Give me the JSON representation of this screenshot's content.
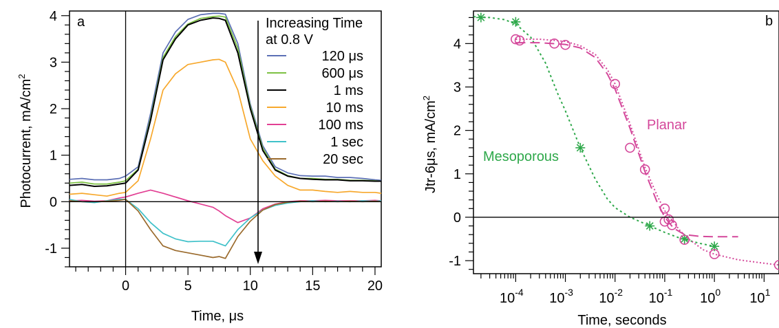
{
  "chart_data": [
    {
      "type": "line",
      "panel_label": "a",
      "xlabel": "Time, μs",
      "ylabel_main": "Photocurrent, mA/cm",
      "ylabel_sup": "2",
      "xlim": [
        -4.5,
        20.5
      ],
      "ylim": [
        -1.4,
        4.1
      ],
      "xticks": [
        0,
        5,
        10,
        15,
        20
      ],
      "yticks": [
        -1,
        0,
        1,
        2,
        3,
        4
      ],
      "grid": false,
      "legend_position": "top-right",
      "legend_title": [
        "Increasing Time",
        "at 0.8 V"
      ],
      "x": [
        -4.5,
        -3.5,
        -2.5,
        -1.5,
        -0.5,
        0,
        1,
        2,
        3,
        4,
        5,
        6,
        7,
        7.5,
        8,
        9,
        10,
        11,
        12,
        13,
        14,
        15,
        16,
        17,
        18,
        19,
        20,
        20.5
      ],
      "series": [
        {
          "name": "120 μs",
          "color": "#5b6fb5",
          "values": [
            0.48,
            0.5,
            0.47,
            0.47,
            0.5,
            0.55,
            0.75,
            1.9,
            3.2,
            3.65,
            3.92,
            4.02,
            4.05,
            4.05,
            4.03,
            3.4,
            2.1,
            1.2,
            0.75,
            0.62,
            0.56,
            0.55,
            0.55,
            0.52,
            0.52,
            0.5,
            0.47,
            0.46
          ]
        },
        {
          "name": "600 μs",
          "color": "#7cc142",
          "values": [
            0.4,
            0.42,
            0.38,
            0.38,
            0.42,
            0.45,
            0.7,
            1.8,
            3.1,
            3.55,
            3.82,
            3.94,
            3.98,
            3.99,
            3.97,
            3.3,
            2.05,
            1.15,
            0.7,
            0.56,
            0.5,
            0.5,
            0.48,
            0.48,
            0.46,
            0.46,
            0.45,
            0.44
          ]
        },
        {
          "name": "1 ms",
          "color": "#000000",
          "values": [
            0.35,
            0.37,
            0.33,
            0.34,
            0.38,
            0.4,
            0.68,
            1.75,
            3.05,
            3.5,
            3.8,
            3.9,
            3.95,
            3.94,
            3.9,
            3.2,
            2.0,
            1.1,
            0.68,
            0.55,
            0.5,
            0.48,
            0.47,
            0.47,
            0.45,
            0.45,
            0.44,
            0.44
          ]
        },
        {
          "name": "10 ms",
          "color": "#f7a82c",
          "values": [
            0.16,
            0.18,
            0.15,
            0.12,
            0.18,
            0.2,
            0.45,
            1.35,
            2.4,
            2.75,
            2.95,
            3.0,
            3.05,
            3.06,
            3.0,
            2.4,
            1.35,
            0.88,
            0.55,
            0.35,
            0.25,
            0.25,
            0.22,
            0.2,
            0.22,
            0.2,
            0.2,
            0.18
          ]
        },
        {
          "name": "100 ms",
          "color": "#e23f93",
          "values": [
            0.02,
            0.03,
            0.01,
            0.02,
            0.08,
            0.1,
            0.18,
            0.25,
            0.18,
            0.1,
            0.02,
            -0.05,
            -0.12,
            -0.2,
            -0.3,
            -0.45,
            -0.35,
            -0.15,
            -0.05,
            0.0,
            0.02,
            0.02,
            0.03,
            0.02,
            0.02,
            0.02,
            0.03,
            0.02
          ]
        },
        {
          "name": "1 sec",
          "color": "#3fc1c9",
          "values": [
            0.05,
            0.0,
            -0.02,
            0.02,
            0.05,
            0.05,
            -0.15,
            -0.45,
            -0.68,
            -0.8,
            -0.86,
            -0.85,
            -0.85,
            -0.9,
            -0.95,
            -0.6,
            -0.35,
            -0.18,
            -0.08,
            -0.03,
            0.0,
            0.02,
            0.0,
            0.01,
            0.0,
            0.02,
            0.01,
            0.02
          ]
        },
        {
          "name": "20 sec",
          "color": "#9a6a2c",
          "values": [
            0.02,
            0.0,
            0.0,
            0.01,
            0.03,
            0.05,
            -0.2,
            -0.6,
            -0.95,
            -1.05,
            -1.1,
            -1.15,
            -1.2,
            -1.18,
            -1.22,
            -0.75,
            -0.42,
            -0.18,
            -0.06,
            -0.01,
            0.01,
            0.0,
            0.01,
            0.0,
            0.01,
            0.0,
            0.01,
            0.0
          ]
        }
      ]
    },
    {
      "type": "scatter",
      "panel_label": "b",
      "xscale": "log",
      "xlabel": "Time, seconds",
      "ylabel_main": "Jtr-6μs,  mA/cm",
      "ylabel_sup": "2",
      "xlim_log10": [
        -4.85,
        1.3
      ],
      "ylim": [
        -1.3,
        4.75
      ],
      "xticks_log10": [
        -4,
        -3,
        -2,
        -1,
        0,
        1
      ],
      "xtick_labels": [
        {
          "base": "10",
          "exp": "-4"
        },
        {
          "base": "10",
          "exp": "-3"
        },
        {
          "base": "10",
          "exp": "-2"
        },
        {
          "base": "10",
          "exp": "-1"
        },
        {
          "base": "10",
          "exp": "0"
        },
        {
          "base": "10",
          "exp": "1"
        }
      ],
      "yticks": [
        -1,
        0,
        1,
        2,
        3,
        4
      ],
      "grid": false,
      "annotations": [
        {
          "text": "Planar",
          "color": "#d4479a"
        },
        {
          "text": "Mesoporous",
          "color": "#2ea84a"
        }
      ],
      "series": [
        {
          "name": "Mesoporous",
          "color": "#2ea84a",
          "marker": "asterisk",
          "points": [
            [
              2e-05,
              4.6
            ],
            [
              0.0001,
              4.5
            ],
            [
              0.002,
              1.6
            ],
            [
              0.05,
              -0.2
            ],
            [
              0.25,
              -0.5
            ],
            [
              1.0,
              -0.67
            ]
          ],
          "fit_curve": [
            [
              1.42e-05,
              4.62
            ],
            [
              3e-05,
              4.6
            ],
            [
              6e-05,
              4.55
            ],
            [
              0.0001,
              4.45
            ],
            [
              0.0002,
              4.15
            ],
            [
              0.0004,
              3.55
            ],
            [
              0.0007,
              2.85
            ],
            [
              0.001,
              2.45
            ],
            [
              0.002,
              1.6
            ],
            [
              0.004,
              0.88
            ],
            [
              0.007,
              0.42
            ],
            [
              0.01,
              0.22
            ],
            [
              0.02,
              0.0
            ],
            [
              0.05,
              -0.2
            ],
            [
              0.1,
              -0.35
            ],
            [
              0.2,
              -0.48
            ],
            [
              0.5,
              -0.6
            ],
            [
              1.0,
              -0.67
            ]
          ]
        },
        {
          "name": "Planar",
          "color": "#d4479a",
          "marker": "circle",
          "points": [
            [
              0.0001,
              4.1
            ],
            [
              0.00012,
              4.07
            ],
            [
              0.0006,
              4.0
            ],
            [
              0.001,
              3.97
            ],
            [
              0.01,
              3.07
            ],
            [
              0.02,
              1.6
            ],
            [
              0.04,
              1.1
            ],
            [
              0.1,
              0.2
            ],
            [
              0.1,
              -0.1
            ],
            [
              0.12,
              -0.05
            ],
            [
              0.14,
              -0.18
            ],
            [
              0.25,
              -0.52
            ],
            [
              1.0,
              -0.85
            ],
            [
              20,
              -1.1
            ]
          ],
          "fit_curve": [
            [
              0.0001,
              4.1
            ],
            [
              0.0003,
              4.1
            ],
            [
              0.001,
              4.05
            ],
            [
              0.002,
              3.95
            ],
            [
              0.004,
              3.75
            ],
            [
              0.007,
              3.4
            ],
            [
              0.01,
              3.07
            ],
            [
              0.02,
              2.15
            ],
            [
              0.04,
              1.15
            ],
            [
              0.07,
              0.5
            ],
            [
              0.1,
              0.15
            ],
            [
              0.2,
              -0.3
            ],
            [
              0.3,
              -0.5
            ],
            [
              0.6,
              -0.75
            ],
            [
              1.0,
              -0.85
            ],
            [
              3.0,
              -0.98
            ],
            [
              10.0,
              -1.06
            ],
            [
              20.0,
              -1.1
            ]
          ],
          "dashed_curve": [
            [
              0.0001,
              4.02
            ],
            [
              0.0003,
              4.02
            ],
            [
              0.001,
              3.98
            ],
            [
              0.002,
              3.9
            ],
            [
              0.004,
              3.68
            ],
            [
              0.007,
              3.3
            ],
            [
              0.01,
              2.95
            ],
            [
              0.02,
              2.05
            ],
            [
              0.04,
              1.05
            ],
            [
              0.07,
              0.35
            ],
            [
              0.1,
              0.0
            ],
            [
              0.15,
              -0.25
            ],
            [
              0.25,
              -0.4
            ],
            [
              0.5,
              -0.44
            ],
            [
              1.0,
              -0.45
            ],
            [
              3.0,
              -0.45
            ]
          ]
        }
      ]
    }
  ]
}
